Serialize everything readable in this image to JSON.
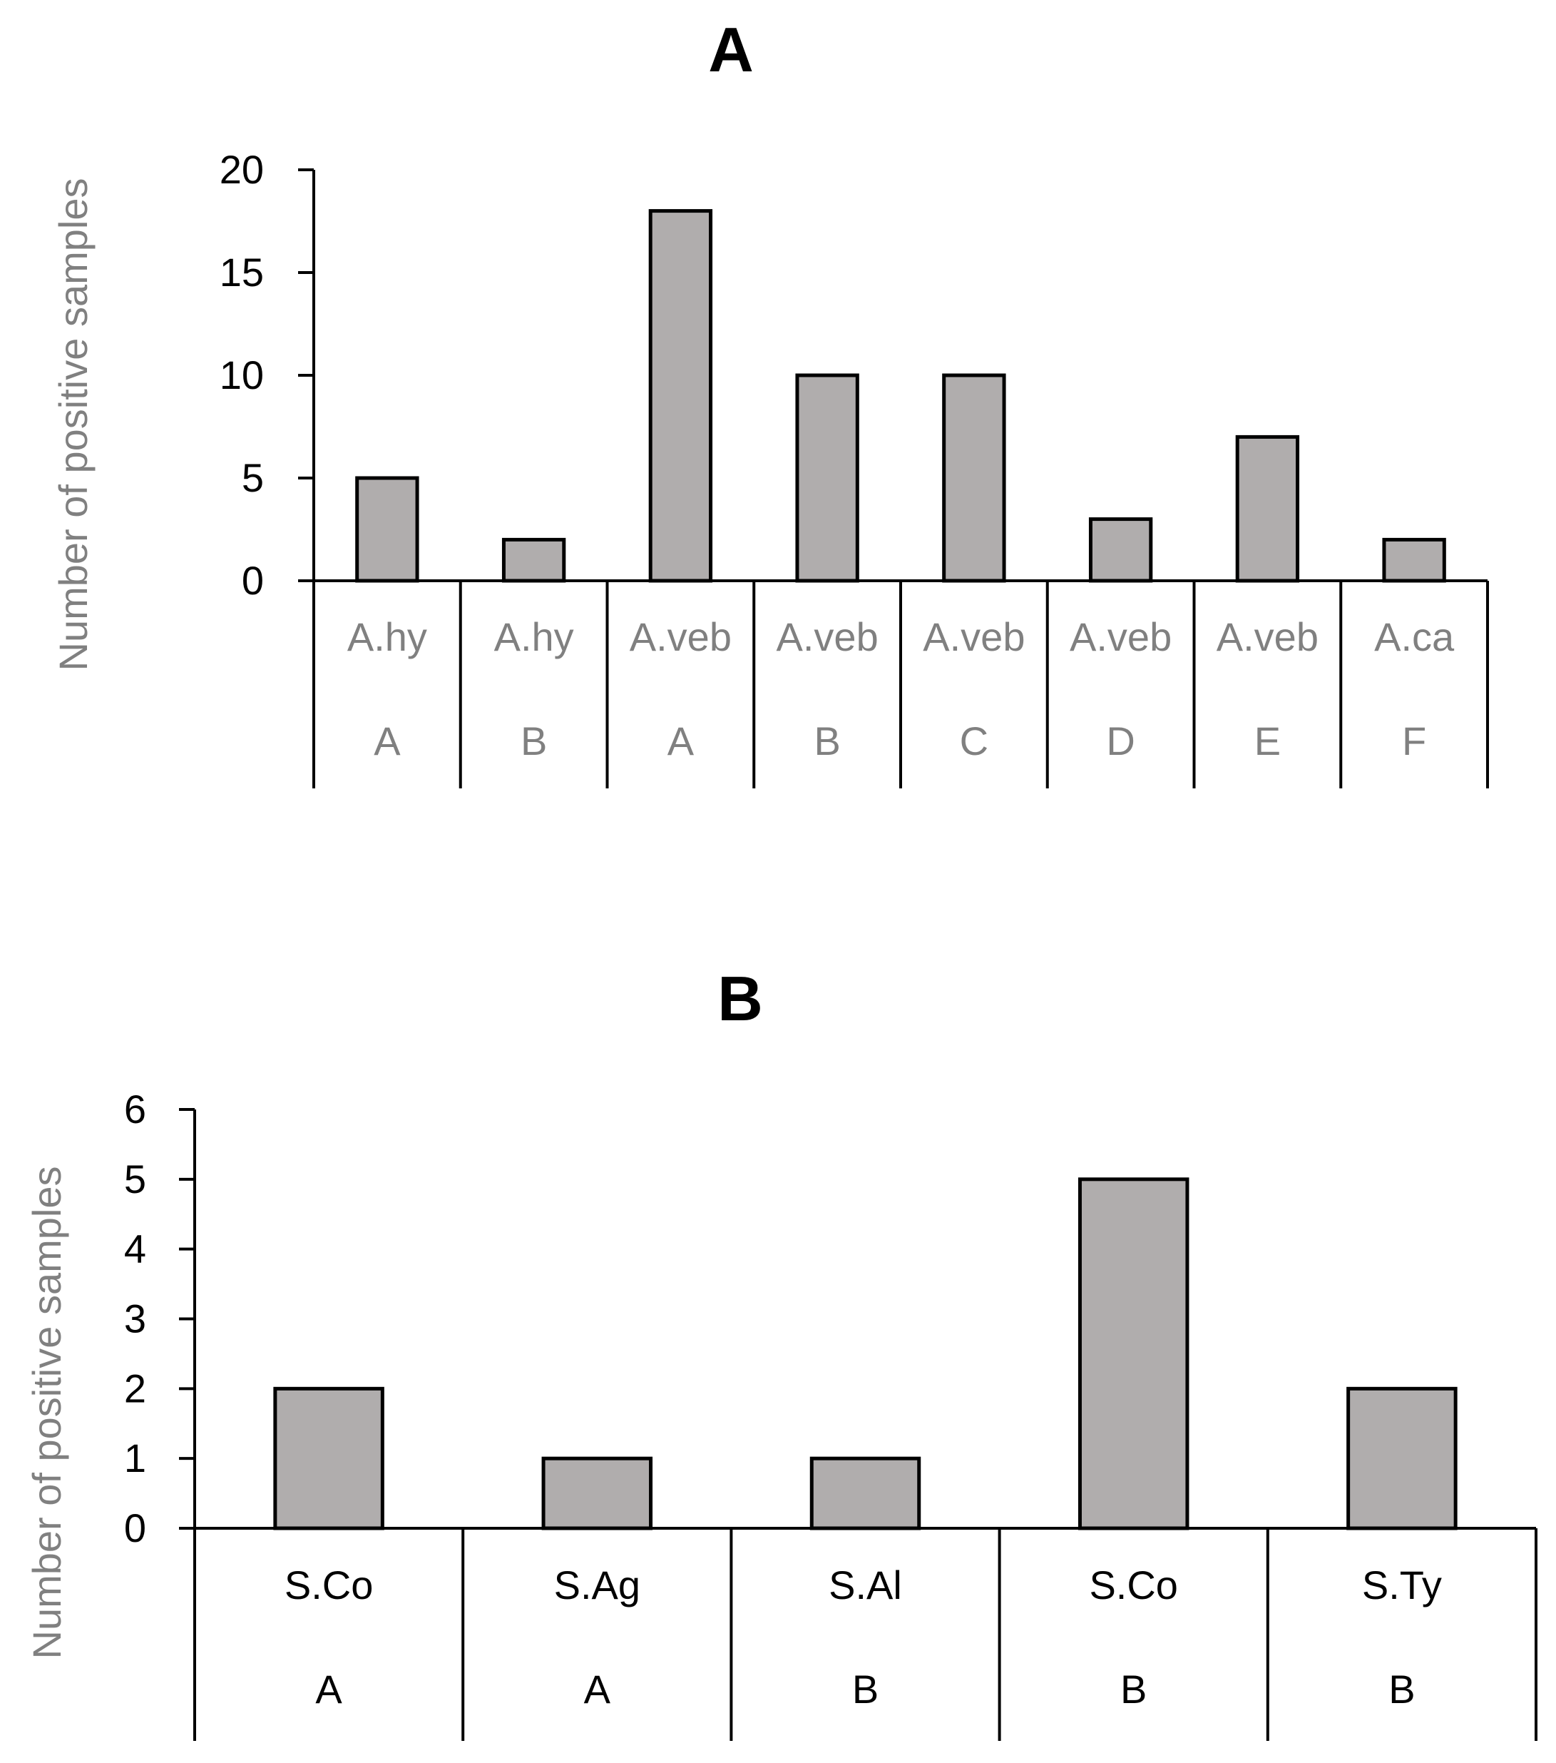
{
  "chart_data": [
    {
      "id": "panelA",
      "type": "bar",
      "title": "A",
      "ylabel": "Number of positive samples",
      "xlabel": "",
      "ylim": [
        0,
        20
      ],
      "yticks": [
        0,
        5,
        10,
        15,
        20
      ],
      "categories": [
        {
          "species": "A.hy",
          "group": "A"
        },
        {
          "species": "A.hy",
          "group": "B"
        },
        {
          "species": "A.veb",
          "group": "A"
        },
        {
          "species": "A.veb",
          "group": "B"
        },
        {
          "species": "A.veb",
          "group": "C"
        },
        {
          "species": "A.veb",
          "group": "D"
        },
        {
          "species": "A.veb",
          "group": "E"
        },
        {
          "species": "A.ca",
          "group": "F"
        }
      ],
      "values": [
        5,
        2,
        18,
        10,
        10,
        3,
        7,
        2
      ],
      "grid": false,
      "legend": "none"
    },
    {
      "id": "panelB",
      "type": "bar",
      "title": "B",
      "ylabel": "Number of positive samples",
      "xlabel": "",
      "ylim": [
        0,
        6
      ],
      "yticks": [
        0,
        1,
        2,
        3,
        4,
        5,
        6
      ],
      "categories": [
        {
          "species": "S.Co",
          "group": "A"
        },
        {
          "species": "S.Ag",
          "group": "A"
        },
        {
          "species": "S.Al",
          "group": "B"
        },
        {
          "species": "S.Co",
          "group": "B"
        },
        {
          "species": "S.Ty",
          "group": "B"
        }
      ],
      "values": [
        2,
        1,
        1,
        5,
        2
      ],
      "grid": false,
      "legend": "none"
    }
  ],
  "colors": {
    "bar_fill": "#b0adad",
    "bar_stroke": "#000000",
    "axis": "#000000",
    "tick_label": "#000000",
    "ylabel": "#808080",
    "category_label_panelA": "#808080",
    "category_label_panelB": "#000000"
  }
}
